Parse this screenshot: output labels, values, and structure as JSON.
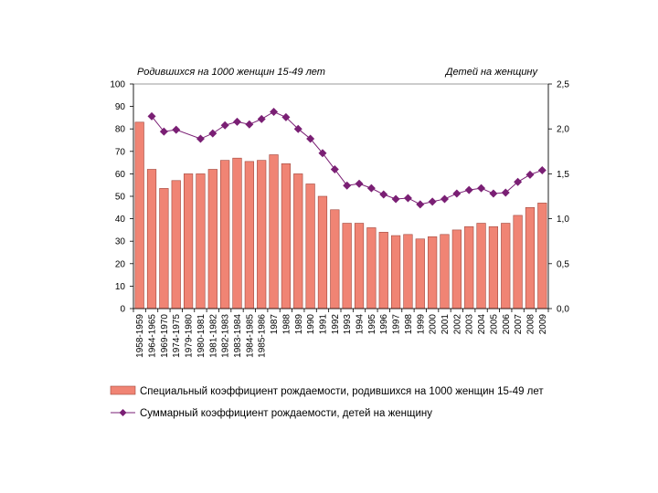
{
  "chart_data": {
    "type": "bar",
    "title": "",
    "left_axis_title": "Родившихся на 1000 женщин 15-49 лет",
    "right_axis_title": "Детей на женщину",
    "categories": [
      "1958-1959",
      "1964-1965",
      "1969-1970",
      "1974-1975",
      "1979-1980",
      "1980-1981",
      "1981-1982",
      "1982-1983",
      "1983-1984",
      "1984-1985",
      "1985-1986",
      "1987",
      "1988",
      "1989",
      "1990",
      "1991",
      "1992",
      "1993",
      "1994",
      "1995",
      "1996",
      "1997",
      "1998",
      "1999",
      "2000",
      "2001",
      "2002",
      "2003",
      "2004",
      "2005",
      "2006",
      "2007",
      "2008",
      "2009"
    ],
    "y_left_ticks": [
      "0",
      "10",
      "20",
      "30",
      "40",
      "50",
      "60",
      "70",
      "80",
      "90",
      "100"
    ],
    "y_right_ticks": [
      "0,0",
      "0,5",
      "1,0",
      "1,5",
      "2,0",
      "2,5"
    ],
    "ylim_left": [
      0,
      100
    ],
    "ylim_right": [
      0,
      2.5
    ],
    "series": [
      {
        "name": "Специальный коэффициент рождаемости, родившихся на 1000 женщин 15-49 лет",
        "type": "bar",
        "axis": "left",
        "color": "#f08474",
        "values": [
          83,
          62,
          53.5,
          57,
          60,
          60,
          62,
          66,
          67,
          65.5,
          66,
          68.5,
          64.5,
          60,
          55.5,
          50,
          44,
          38,
          38,
          36,
          34,
          32.5,
          33,
          31,
          32,
          33,
          35,
          36.5,
          38,
          36.5,
          38,
          41.5,
          45,
          47
        ]
      },
      {
        "name": "Суммарный коэффициент рождаемости, детей на женщину",
        "type": "line",
        "axis": "right",
        "color": "#7a1f74",
        "values": [
          null,
          2.14,
          1.97,
          1.99,
          null,
          1.89,
          1.95,
          2.04,
          2.08,
          2.05,
          2.11,
          2.19,
          2.13,
          2.0,
          1.89,
          1.73,
          1.55,
          1.37,
          1.39,
          1.34,
          1.27,
          1.22,
          1.23,
          1.16,
          1.19,
          1.22,
          1.28,
          1.32,
          1.34,
          1.28,
          1.29,
          1.41,
          1.49,
          1.54
        ]
      }
    ]
  }
}
